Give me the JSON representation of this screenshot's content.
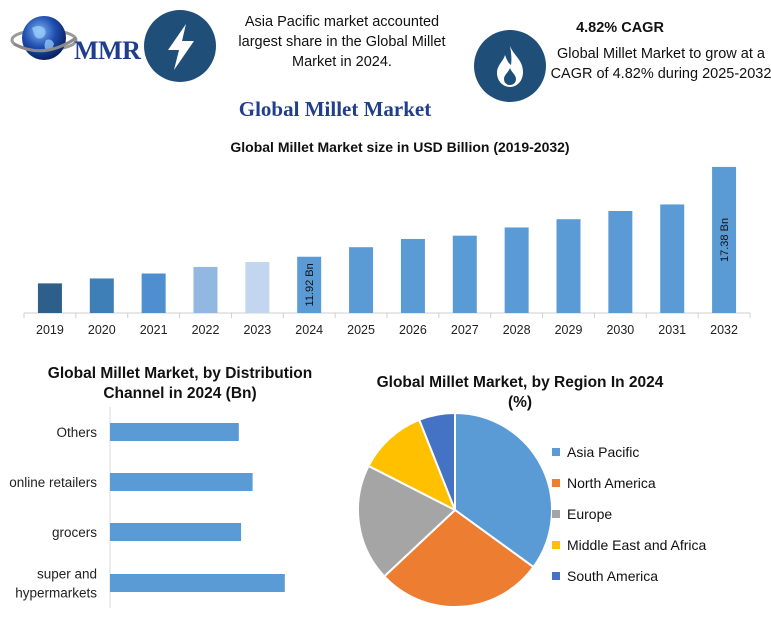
{
  "header": {
    "logo_text": "MMR",
    "left_note": "Asia Pacific market accounted largest share in the Global Millet Market in 2024.",
    "right_note_title": "4.82% CAGR",
    "right_note": "Global Millet Market to grow at a CAGR of 4.82% during 2025-2032",
    "icons": [
      "globe-icon",
      "lightning-bolt-icon",
      "flame-icon"
    ],
    "colors": {
      "brand_blue": "#1f3e8c",
      "icon_circle": "#1f4e79"
    }
  },
  "main_title": "Global Millet Market",
  "chart_data": [
    {
      "type": "bar",
      "title": "Global Millet Market size in USD Billion (2019-2032)",
      "categories": [
        "2019",
        "2020",
        "2021",
        "2022",
        "2023",
        "2024",
        "2025",
        "2026",
        "2027",
        "2028",
        "2029",
        "2030",
        "2031",
        "2032"
      ],
      "values": [
        10.3,
        10.6,
        10.9,
        11.3,
        11.6,
        11.92,
        12.5,
        13.0,
        13.2,
        13.7,
        14.2,
        14.7,
        15.1,
        17.38
      ],
      "data_labels": {
        "5": "11.92 Bn",
        "13": "17.38 Bn"
      },
      "colors": [
        "#2e5f8a",
        "#3f7fb8",
        "#4f8fcf",
        "#92b7e0",
        "#c2d6ef",
        "#5b9bd5",
        "#5b9bd5",
        "#5b9bd5",
        "#5b9bd5",
        "#5b9bd5",
        "#5b9bd5",
        "#5b9bd5",
        "#5b9bd5",
        "#5b9bd5"
      ],
      "ylim": [
        8.5,
        17.8
      ],
      "xlabel": "",
      "ylabel": "",
      "grid": false
    },
    {
      "type": "bar",
      "orientation": "horizontal",
      "title": "Global Millet Market, by Distribution Channel in 2024 (Bn)",
      "categories": [
        "Others",
        "online retailers",
        "grocers",
        "super and hypermarkets"
      ],
      "values": [
        2.8,
        3.1,
        2.85,
        3.8
      ],
      "xlim": [
        0,
        5
      ],
      "color": "#5b9bd5",
      "xlabel": "",
      "ylabel": "",
      "grid": false
    },
    {
      "type": "pie",
      "title": "Global Millet Market, by Region In 2024 (%)",
      "labels": [
        "Asia Pacific",
        "North America",
        "Europe",
        "Middle East and Africa",
        "South America"
      ],
      "values": [
        35,
        28,
        19.5,
        11.5,
        6
      ],
      "colors": [
        "#5b9bd5",
        "#ed7d31",
        "#a5a5a5",
        "#ffc000",
        "#4472c4"
      ],
      "legend": "right"
    }
  ]
}
